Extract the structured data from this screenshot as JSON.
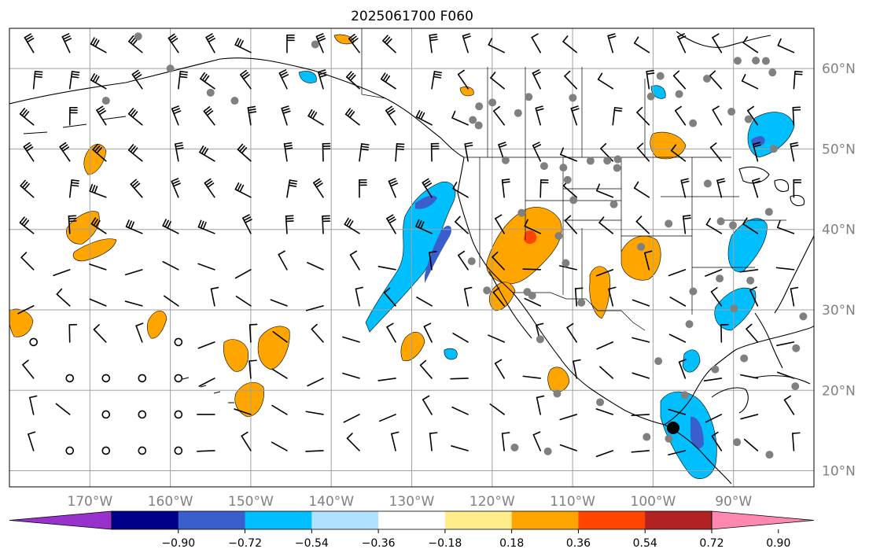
{
  "title": "2025061700 F060",
  "map": {
    "lon_range": [
      -180,
      -80
    ],
    "lat_range": [
      8,
      65
    ],
    "lat_ticks": [
      {
        "value": 10,
        "label": "10°N"
      },
      {
        "value": 20,
        "label": "20°N"
      },
      {
        "value": 30,
        "label": "30°N"
      },
      {
        "value": 40,
        "label": "40°N"
      },
      {
        "value": 50,
        "label": "50°N"
      },
      {
        "value": 60,
        "label": "60°N"
      }
    ],
    "lon_ticks": [
      {
        "value": -170,
        "label": "170°W"
      },
      {
        "value": -160,
        "label": "160°W"
      },
      {
        "value": -150,
        "label": "150°W"
      },
      {
        "value": -140,
        "label": "140°W"
      },
      {
        "value": -130,
        "label": "130°W"
      },
      {
        "value": -120,
        "label": "120°W"
      },
      {
        "value": -110,
        "label": "110°W"
      },
      {
        "value": -100,
        "label": "100°W"
      },
      {
        "value": -90,
        "label": "90°W"
      }
    ],
    "gridlines": true
  },
  "colorbar": {
    "colors": [
      "#9932cc",
      "#00008b",
      "#3a5fcd",
      "#00bfff",
      "#b0e2ff",
      "#ffffff",
      "#ffec8b",
      "#ffa500",
      "#ff4500",
      "#b22222",
      "#ff88b0"
    ],
    "labels": [
      "−0.90",
      "−0.72",
      "−0.54",
      "−0.36",
      "−0.18",
      "0.18",
      "0.36",
      "0.54",
      "0.72",
      "0.90"
    ]
  },
  "legend_colors": {
    "coast": "#000000",
    "grid": "#a0a0a0",
    "station": "#808080"
  }
}
